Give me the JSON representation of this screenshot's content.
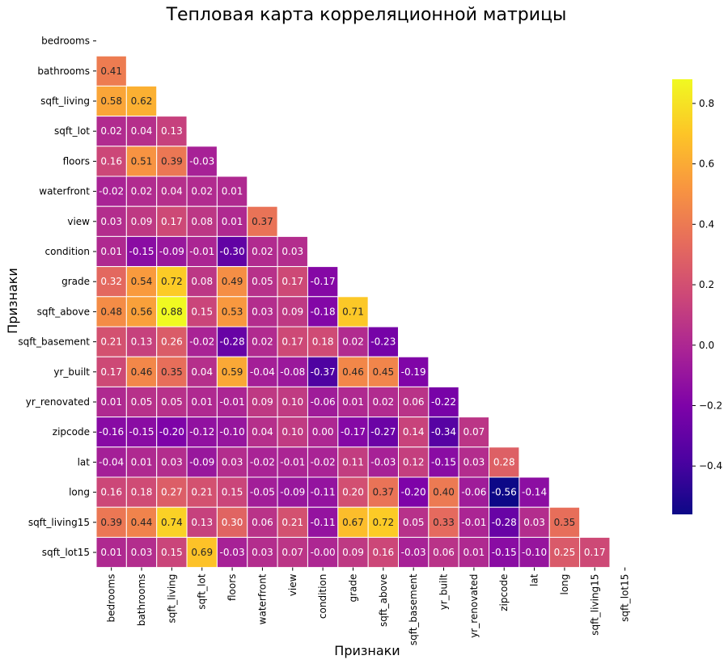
{
  "chart_data": {
    "type": "heatmap",
    "title": "Тепловая карта корреляционной матрицы",
    "xlabel": "Признаки",
    "ylabel": "Признаки",
    "mask": "upper-triangle (diagonal hidden)",
    "labels": [
      "bedrooms",
      "bathrooms",
      "sqft_living",
      "sqft_lot",
      "floors",
      "waterfront",
      "view",
      "condition",
      "grade",
      "sqft_above",
      "sqft_basement",
      "yr_built",
      "yr_renovated",
      "zipcode",
      "lat",
      "long",
      "sqft_living15",
      "sqft_lot15"
    ],
    "values": [
      [],
      [
        0.41
      ],
      [
        0.58,
        0.62
      ],
      [
        0.02,
        0.04,
        0.13
      ],
      [
        0.16,
        0.51,
        0.39,
        -0.03
      ],
      [
        -0.02,
        0.02,
        0.04,
        0.02,
        0.01
      ],
      [
        0.03,
        0.09,
        0.17,
        0.08,
        0.01,
        0.37
      ],
      [
        0.01,
        -0.15,
        -0.09,
        -0.01,
        -0.3,
        0.02,
        0.03
      ],
      [
        0.32,
        0.54,
        0.72,
        0.08,
        0.49,
        0.05,
        0.17,
        -0.17
      ],
      [
        0.48,
        0.56,
        0.88,
        0.15,
        0.53,
        0.03,
        0.09,
        -0.18,
        0.71
      ],
      [
        0.21,
        0.13,
        0.26,
        -0.02,
        -0.28,
        0.02,
        0.17,
        0.18,
        0.02,
        -0.23
      ],
      [
        0.17,
        0.46,
        0.35,
        0.04,
        0.59,
        -0.04,
        -0.08,
        -0.37,
        0.46,
        0.45,
        -0.19
      ],
      [
        0.01,
        0.05,
        0.05,
        0.01,
        -0.01,
        0.09,
        0.1,
        -0.06,
        0.01,
        0.02,
        0.06,
        -0.22
      ],
      [
        -0.16,
        -0.15,
        -0.2,
        -0.12,
        -0.1,
        0.04,
        0.1,
        0.0,
        -0.17,
        -0.27,
        0.14,
        -0.34,
        0.07
      ],
      [
        -0.04,
        0.01,
        0.03,
        -0.09,
        0.03,
        -0.02,
        -0.01,
        -0.02,
        0.11,
        -0.03,
        0.12,
        -0.15,
        0.03,
        0.28
      ],
      [
        0.16,
        0.18,
        0.27,
        0.21,
        0.15,
        -0.05,
        -0.09,
        -0.11,
        0.2,
        0.37,
        -0.2,
        0.4,
        -0.06,
        -0.56,
        -0.14
      ],
      [
        0.39,
        0.44,
        0.74,
        0.13,
        0.3,
        0.06,
        0.21,
        -0.11,
        0.67,
        0.72,
        0.05,
        0.33,
        -0.01,
        -0.28,
        0.03,
        0.35
      ],
      [
        0.01,
        0.03,
        0.15,
        0.69,
        -0.03,
        0.03,
        0.07,
        -0.0,
        0.09,
        0.16,
        -0.03,
        0.06,
        0.01,
        -0.15,
        -0.1,
        0.25,
        0.17
      ]
    ],
    "value_labels": [
      [],
      [
        "0.41"
      ],
      [
        "0.58",
        "0.62"
      ],
      [
        "0.02",
        "0.04",
        "0.13"
      ],
      [
        "0.16",
        "0.51",
        "0.39",
        "-0.03"
      ],
      [
        "-0.02",
        "0.02",
        "0.04",
        "0.02",
        "0.01"
      ],
      [
        "0.03",
        "0.09",
        "0.17",
        "0.08",
        "0.01",
        "0.37"
      ],
      [
        "0.01",
        "-0.15",
        "-0.09",
        "-0.01",
        "-0.30",
        "0.02",
        "0.03"
      ],
      [
        "0.32",
        "0.54",
        "0.72",
        "0.08",
        "0.49",
        "0.05",
        "0.17",
        "-0.17"
      ],
      [
        "0.48",
        "0.56",
        "0.88",
        "0.15",
        "0.53",
        "0.03",
        "0.09",
        "-0.18",
        "0.71"
      ],
      [
        "0.21",
        "0.13",
        "0.26",
        "-0.02",
        "-0.28",
        "0.02",
        "0.17",
        "0.18",
        "0.02",
        "-0.23"
      ],
      [
        "0.17",
        "0.46",
        "0.35",
        "0.04",
        "0.59",
        "-0.04",
        "-0.08",
        "-0.37",
        "0.46",
        "0.45",
        "-0.19"
      ],
      [
        "0.01",
        "0.05",
        "0.05",
        "0.01",
        "-0.01",
        "0.09",
        "0.10",
        "-0.06",
        "0.01",
        "0.02",
        "0.06",
        "-0.22"
      ],
      [
        "-0.16",
        "-0.15",
        "-0.20",
        "-0.12",
        "-0.10",
        "0.04",
        "0.10",
        "0.00",
        "-0.17",
        "-0.27",
        "0.14",
        "-0.34",
        "0.07"
      ],
      [
        "-0.04",
        "0.01",
        "0.03",
        "-0.09",
        "0.03",
        "-0.02",
        "-0.01",
        "-0.02",
        "0.11",
        "-0.03",
        "0.12",
        "-0.15",
        "0.03",
        "0.28"
      ],
      [
        "0.16",
        "0.18",
        "0.27",
        "0.21",
        "0.15",
        "-0.05",
        "-0.09",
        "-0.11",
        "0.20",
        "0.37",
        "-0.20",
        "0.40",
        "-0.06",
        "-0.56",
        "-0.14"
      ],
      [
        "0.39",
        "0.44",
        "0.74",
        "0.13",
        "0.30",
        "0.06",
        "0.21",
        "-0.11",
        "0.67",
        "0.72",
        "0.05",
        "0.33",
        "-0.01",
        "-0.28",
        "0.03",
        "0.35"
      ],
      [
        "0.01",
        "0.03",
        "0.15",
        "0.69",
        "-0.03",
        "0.03",
        "0.07",
        "-0.00",
        "0.09",
        "0.16",
        "-0.03",
        "0.06",
        "0.01",
        "-0.15",
        "-0.10",
        "0.25",
        "0.17"
      ]
    ],
    "colorbar": {
      "vmin": -0.56,
      "vmax": 0.88,
      "ticks": [
        -0.4,
        -0.2,
        0.0,
        0.2,
        0.4,
        0.6,
        0.8
      ],
      "tick_labels": [
        "−0.4",
        "−0.2",
        "0.0",
        "0.2",
        "0.4",
        "0.6",
        "0.8"
      ],
      "colormap": "plasma"
    }
  }
}
